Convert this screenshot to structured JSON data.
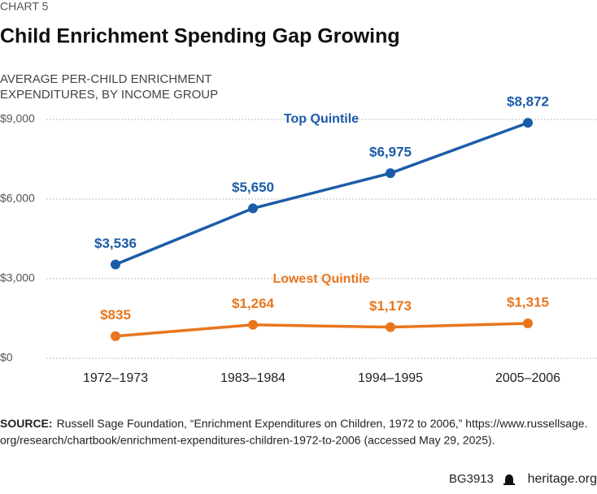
{
  "chart_data": {
    "type": "line",
    "kicker": "CHART 5",
    "title": "Child Enrichment Spending Gap Growing",
    "subtitle": [
      "AVERAGE PER-CHILD ENRICHMENT",
      "EXPENDITURES, BY INCOME GROUP"
    ],
    "categories": [
      "1972–1973",
      "1983–1984",
      "1994–1995",
      "2005–2006"
    ],
    "series": [
      {
        "name": "Top Quintile",
        "color": "#1b5ca8",
        "values": [
          3536,
          5650,
          6975,
          8872
        ],
        "value_labels": [
          "$3,536",
          "$5,650",
          "$6,975",
          "$8,872"
        ]
      },
      {
        "name": "Lowest Quintile",
        "color": "#e8761e",
        "values": [
          835,
          1264,
          1173,
          1315
        ],
        "value_labels": [
          "$835",
          "$1,264",
          "$1,173",
          "$1,315"
        ]
      }
    ],
    "ylim": [
      0,
      9000
    ],
    "yticks": [
      {
        "value": 0,
        "label": "$0"
      },
      {
        "value": 3000,
        "label": "$3,000"
      },
      {
        "value": 6000,
        "label": "$6,000"
      },
      {
        "value": 9000,
        "label": "$9,000"
      }
    ],
    "grid": true,
    "source_label": "SOURCE:",
    "source": [
      "Russell Sage Foundation, “Enrichment Expenditures on Children, 1972 to 2006,” https://www.russellsage.",
      "org/research/chartbook/enrichment-expenditures-children-1972-to-2006 (accessed May 29, 2025)."
    ],
    "footer_id": "BG3913",
    "footer_site": "heritage.org"
  }
}
